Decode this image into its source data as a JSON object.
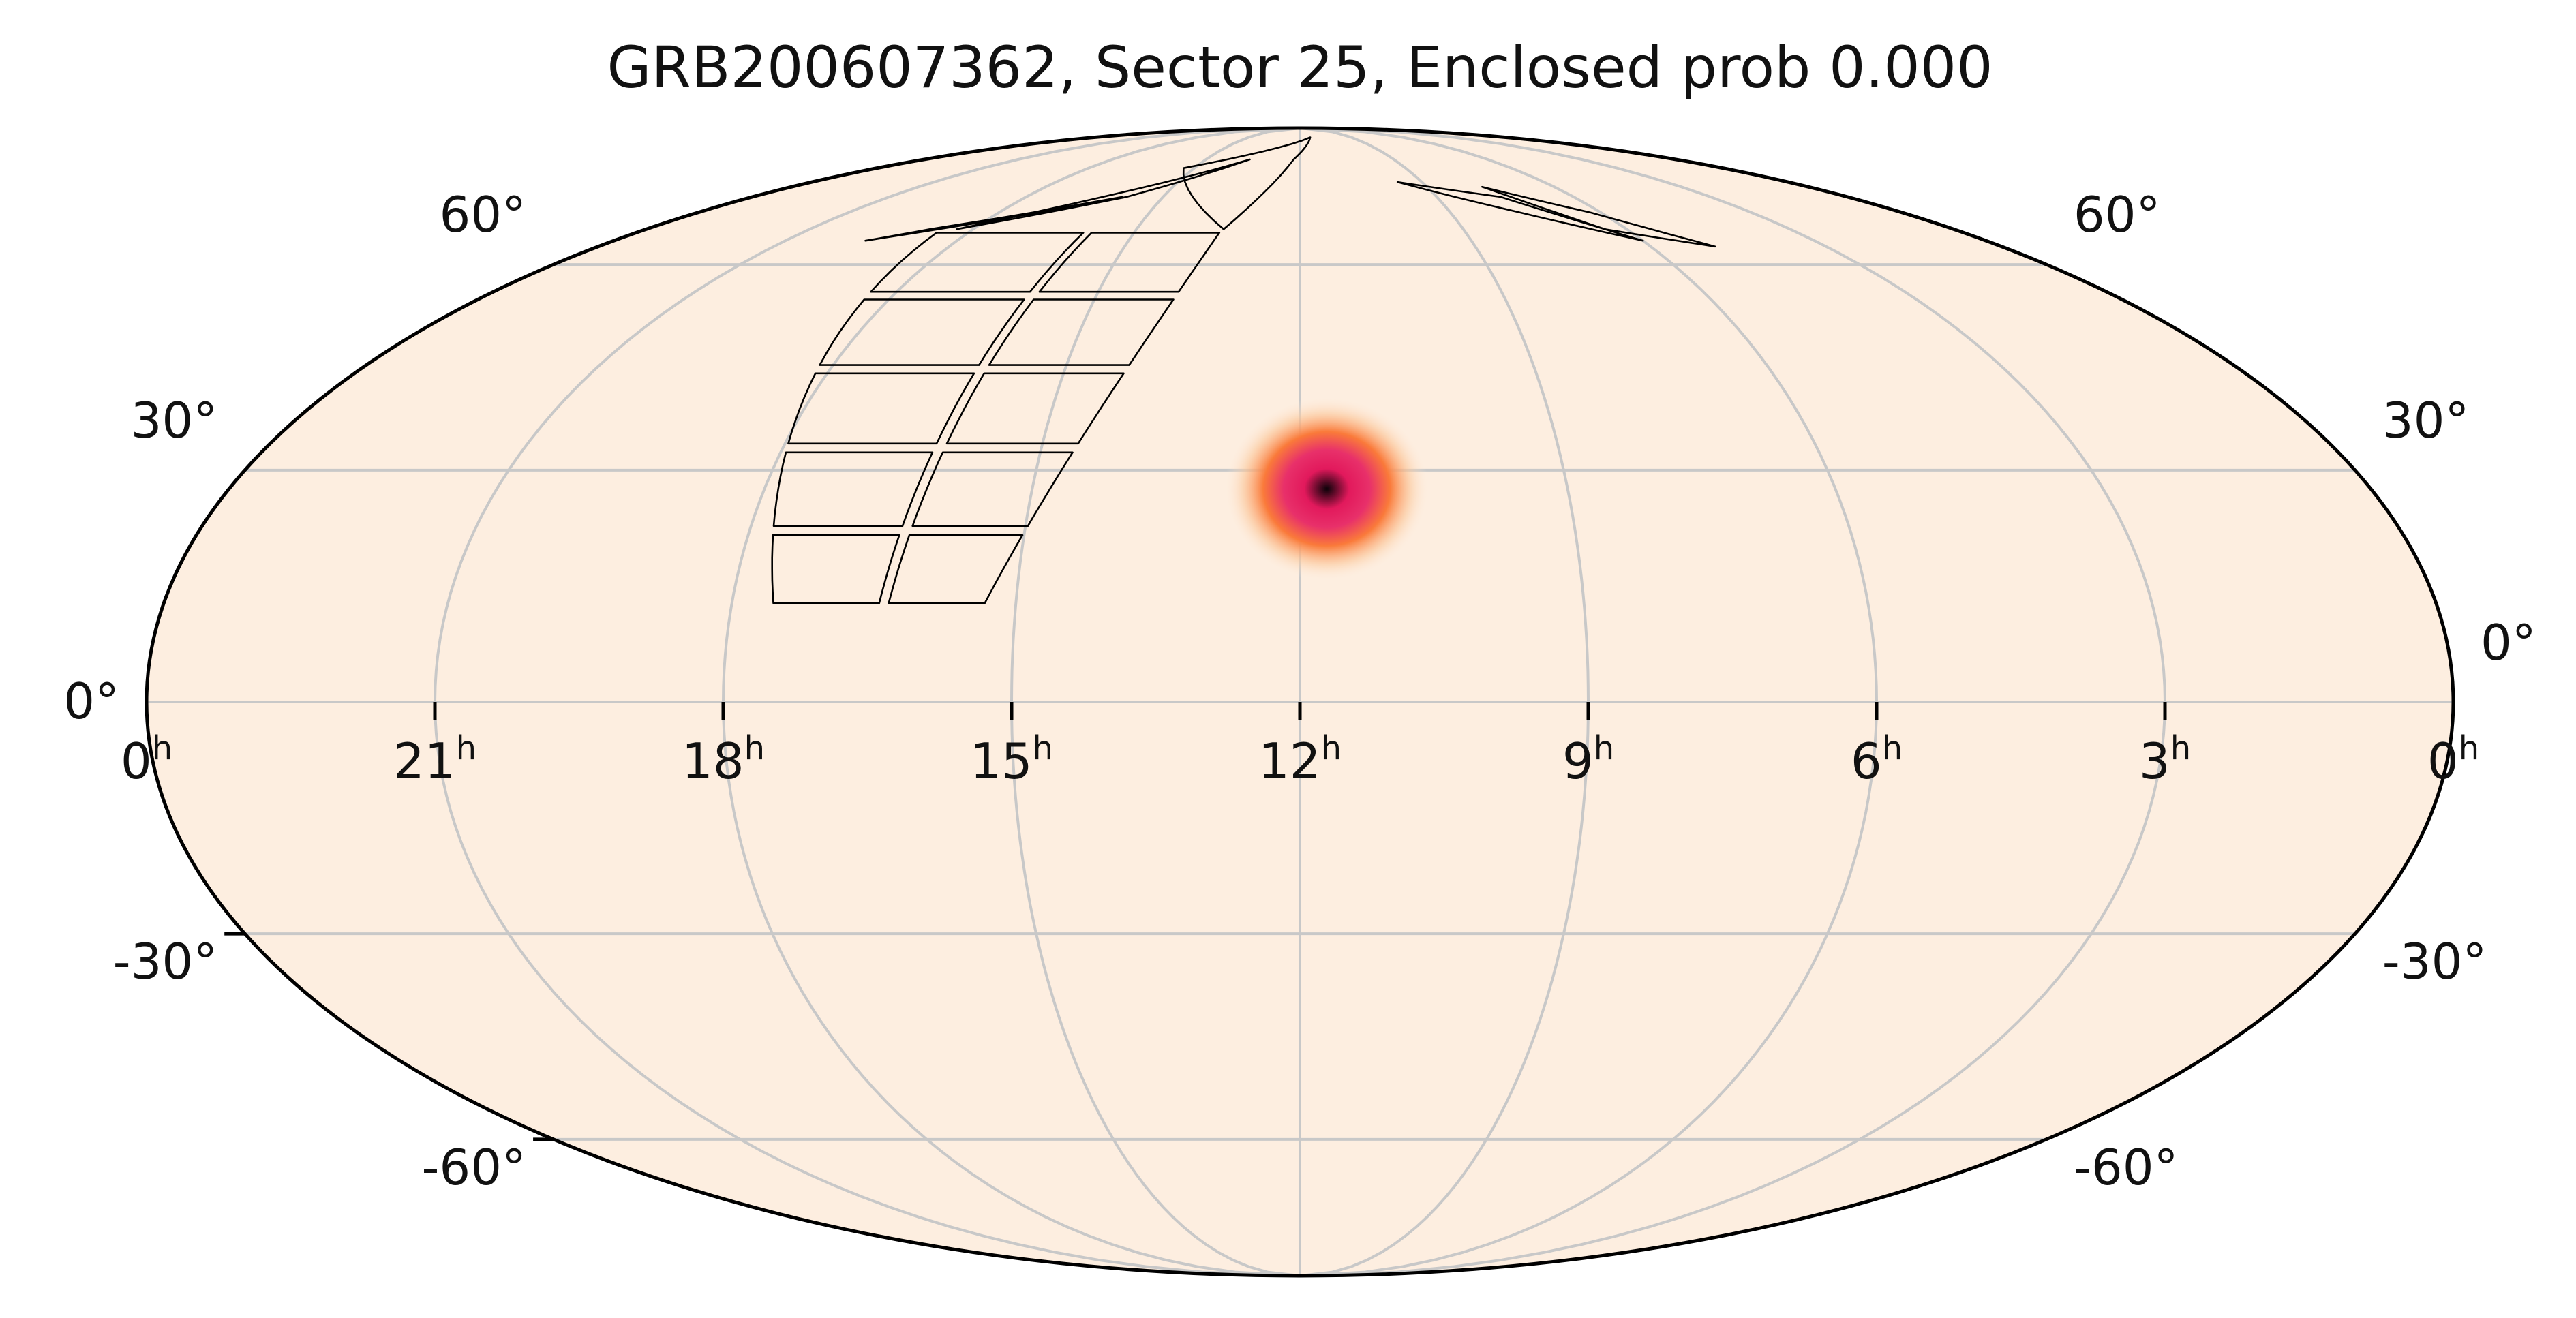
{
  "title": "GRB200607362, Sector 25, Enclosed prob 0.000",
  "colors": {
    "background": "#fdeee0",
    "grid": "#c8c8c8",
    "outline": "#000000",
    "blob_core": "#0a0208",
    "blob_mid": "#e2195c",
    "blob_outer": "#fa7a3a"
  },
  "map": {
    "projection": "mollweide",
    "ra_labels": [
      "0h",
      "21h",
      "18h",
      "15h",
      "12h",
      "9h",
      "6h",
      "3h",
      "0h"
    ],
    "ra_label_hours": [
      24,
      21,
      18,
      15,
      12,
      9,
      6,
      3,
      0
    ],
    "dec_labels_left": [
      "60°",
      "30°",
      "0°",
      "-30°",
      "-60°"
    ],
    "dec_labels_right": [
      "60°",
      "30°",
      "0°",
      "-30°",
      "-60°"
    ],
    "dec_values": [
      60,
      30,
      0,
      -30,
      -60
    ]
  },
  "localization": {
    "ra_hours": 11.7,
    "dec_deg": 27.5
  }
}
